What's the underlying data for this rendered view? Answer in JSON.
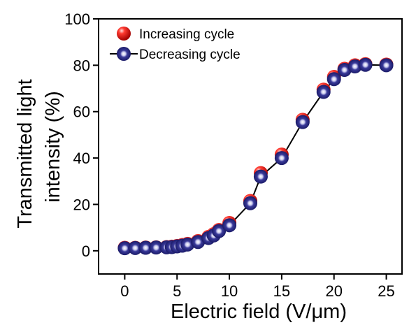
{
  "chart_data": {
    "type": "scatter",
    "xlabel": "Electric field (V/μm)",
    "ylabel_line1": "Transmitted light",
    "ylabel_line2": "intensity (%)",
    "xlim": [
      -2.5,
      26.5
    ],
    "ylim": [
      -10,
      100
    ],
    "xticks": [
      0,
      5,
      10,
      15,
      20,
      25
    ],
    "yticks": [
      0,
      20,
      40,
      60,
      80,
      100
    ],
    "grid": false,
    "legend_position": "top-left",
    "series": [
      {
        "name": "Increasing cycle",
        "color": "#e8201c",
        "marker": "sphere",
        "line": false,
        "x": [
          0,
          1,
          2,
          3,
          4,
          4.5,
          5,
          5.5,
          6,
          7,
          8,
          8.5,
          9,
          10,
          12,
          13,
          15,
          17,
          19,
          20,
          21,
          22,
          23,
          25
        ],
        "y": [
          1.3,
          1.3,
          1.4,
          1.5,
          1.6,
          1.8,
          2.1,
          2.5,
          3.0,
          4.2,
          6.0,
          7.2,
          9.0,
          12.0,
          21.5,
          33.5,
          41.5,
          56.5,
          69.5,
          75.0,
          78.5,
          80.0,
          80.5,
          80.3
        ]
      },
      {
        "name": "Decreasing cycle",
        "color": "#1c1c7a",
        "marker": "sphere",
        "line": true,
        "x": [
          0,
          1,
          2,
          3,
          4,
          4.5,
          5,
          5.5,
          6,
          7,
          8,
          8.5,
          9,
          10,
          12,
          13,
          15,
          17,
          19,
          20,
          21,
          22,
          23,
          25
        ],
        "y": [
          1.1,
          1.2,
          1.3,
          1.4,
          1.5,
          1.6,
          1.9,
          2.2,
          2.7,
          3.8,
          5.5,
          6.6,
          8.5,
          11.0,
          20.5,
          32.0,
          40.0,
          55.5,
          68.5,
          74.0,
          78.0,
          79.5,
          80.2,
          80.0
        ]
      }
    ]
  }
}
